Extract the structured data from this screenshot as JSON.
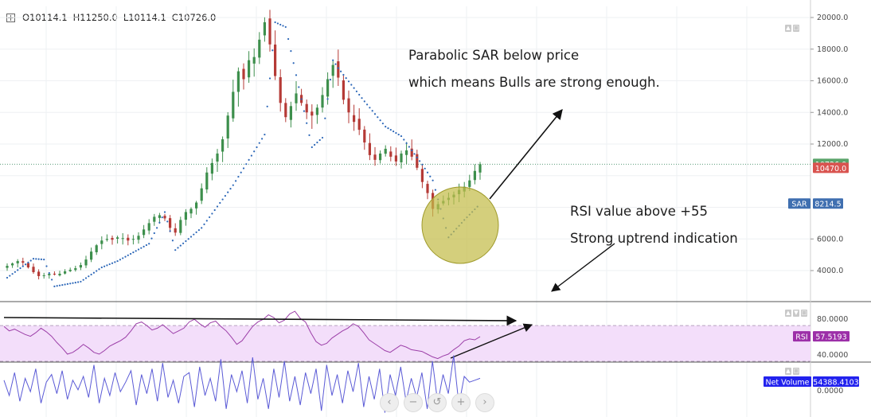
{
  "legend": {
    "open": "O10114.1",
    "high": "H11250.0",
    "low": "L10114.1",
    "close": "C10726.0"
  },
  "annotations": {
    "sar_line1": "Parabolic SAR below price",
    "sar_line2": "which means Bulls are strong enough.",
    "rsi_line1": "RSI value above +55",
    "rsi_line2": "Strong uptrend indication"
  },
  "nav_buttons": [
    {
      "icon": "chevron-left-icon",
      "glyph": "‹"
    },
    {
      "icon": "minus-icon",
      "glyph": "−"
    },
    {
      "icon": "reset-icon",
      "glyph": "↺"
    },
    {
      "icon": "plus-icon",
      "glyph": "+"
    },
    {
      "icon": "chevron-right-icon",
      "glyph": "›"
    }
  ],
  "colors": {
    "up": "#3d8f4c",
    "down": "#b53a36",
    "sar": "#2c67b8",
    "rsi_line": "#9c3fa8",
    "rsi_band": "#f3defa",
    "volume_line": "#5a5ad6",
    "close_tag": "#5aa36a",
    "price_tag": "#d9534f",
    "sar_tag": "#3f6fb0",
    "rsi_tag": "#9c2fa8",
    "netvol_tag": "#2222ee",
    "circle_fill": "#c4bd4a"
  },
  "chart_data": [
    {
      "type": "candlestick",
      "panel": "price",
      "y_ticks": [
        "20000.0",
        "18000.0",
        "16000.0",
        "14000.0",
        "12000.0",
        "6000.0",
        "4000.0"
      ],
      "y_range": [
        2000,
        20000
      ],
      "last_close": 10726.0,
      "price_line": 10726.0,
      "tags": [
        {
          "label": "10726.0",
          "value": 10726.0,
          "color_key": "close_tag"
        },
        {
          "label": "10470.0",
          "value": 10470.0,
          "color_key": "price_tag"
        },
        {
          "label": "SAR",
          "series": "sar_tag"
        },
        {
          "label": "8214.5",
          "value": 8214.5,
          "color_key": "sar_tag"
        }
      ],
      "close_path": [
        4300,
        4450,
        4600,
        4500,
        4200,
        3900,
        3650,
        3700,
        3800,
        3750,
        3800,
        3950,
        4050,
        4150,
        4350,
        4700,
        5200,
        5600,
        5900,
        6000,
        5950,
        6100,
        6050,
        5900,
        6000,
        6200,
        6600,
        7000,
        7400,
        7500,
        7300,
        6700,
        6400,
        7200,
        7700,
        7900,
        8300,
        9200,
        10200,
        10800,
        11400,
        12300,
        13800,
        15300,
        16600,
        16100,
        17300,
        17500,
        18600,
        19700,
        18300,
        16300,
        14600,
        13700,
        14400,
        15200,
        14600,
        14000,
        13800,
        14300,
        15100,
        16100,
        17000,
        16200,
        14800,
        14000,
        13400,
        12900,
        12100,
        11300,
        11000,
        11400,
        11700,
        11200,
        10900,
        11400,
        11600,
        11200,
        10500,
        9600,
        8900,
        7900,
        8200,
        8400,
        8600,
        8800,
        9100,
        9300,
        9700,
        10300,
        10726
      ],
      "sar_path": [
        [
          0,
          3550
        ],
        [
          5,
          4750
        ],
        [
          7,
          4700
        ],
        [
          9,
          3000
        ],
        [
          14,
          3300
        ],
        [
          18,
          4200
        ],
        [
          21,
          4600
        ],
        [
          27,
          5700
        ],
        [
          30,
          7700
        ],
        [
          32,
          5300
        ],
        [
          37,
          6700
        ],
        [
          43,
          9400
        ],
        [
          49,
          12600
        ],
        [
          51,
          19700
        ],
        [
          53,
          19400
        ],
        [
          58,
          11800
        ],
        [
          60,
          12400
        ],
        [
          62,
          17300
        ],
        [
          63,
          16800
        ],
        [
          68,
          14700
        ],
        [
          72,
          13100
        ],
        [
          75,
          12500
        ],
        [
          79,
          10700
        ],
        [
          81,
          9700
        ],
        [
          84,
          6100
        ],
        [
          87,
          7200
        ],
        [
          90,
          8214.5
        ]
      ]
    },
    {
      "type": "line",
      "panel": "rsi",
      "name": "RSI",
      "y_ticks": [
        "80.0000",
        "40.0000"
      ],
      "y_range": [
        30,
        95
      ],
      "band": [
        70,
        30
      ],
      "last_value": 57.5193,
      "tag_label": "RSI",
      "tag_value": "57.5193",
      "values": [
        69,
        64,
        66,
        63,
        60,
        58,
        62,
        67,
        63,
        58,
        51,
        45,
        38,
        40,
        44,
        49,
        45,
        40,
        38,
        42,
        47,
        50,
        53,
        57,
        64,
        72,
        74,
        70,
        65,
        67,
        71,
        66,
        61,
        64,
        67,
        74,
        77,
        72,
        68,
        73,
        75,
        69,
        64,
        57,
        49,
        53,
        61,
        69,
        74,
        77,
        82,
        79,
        73,
        76,
        83,
        86,
        78,
        74,
        62,
        52,
        48,
        50,
        56,
        60,
        64,
        67,
        72,
        69,
        62,
        54,
        50,
        46,
        42,
        40,
        44,
        48,
        46,
        43,
        42,
        41,
        38,
        35,
        33,
        36,
        38,
        43,
        47,
        53,
        55,
        54,
        57.5193
      ]
    },
    {
      "type": "line",
      "panel": "volume",
      "name": "Net Volume",
      "y_ticks": [
        "0.0000"
      ],
      "last_value": 54388.4103,
      "tag_label": "Net Volume",
      "tag_value": "54388.4103",
      "values": [
        0.3,
        -0.5,
        0.7,
        -0.8,
        0.4,
        -0.3,
        0.9,
        -0.9,
        0.2,
        0.6,
        -0.4,
        0.8,
        -0.7,
        0.3,
        -0.2,
        0.5,
        -0.6,
        1.1,
        -0.9,
        0.4,
        -0.5,
        0.7,
        -0.3,
        0.2,
        0.8,
        -1.0,
        0.6,
        -0.4,
        0.9,
        -0.8,
        1.2,
        -0.6,
        0.3,
        -0.9,
        0.5,
        0.7,
        -1.1,
        1.0,
        -0.5,
        0.4,
        -0.8,
        1.4,
        -1.2,
        0.6,
        -0.3,
        0.8,
        -0.9,
        1.5,
        -0.7,
        0.4,
        -1.2,
        0.9,
        -0.6,
        1.3,
        -0.8,
        0.5,
        -1.0,
        0.7,
        -0.4,
        0.9,
        -1.3,
        1.1,
        -0.5,
        0.6,
        -0.9,
        0.8,
        -0.3,
        1.2,
        -1.1,
        0.5,
        -0.7,
        0.9,
        -1.4,
        0.6,
        -0.5,
        1.0,
        -0.8,
        0.4,
        -0.6,
        0.7,
        -1.2,
        1.3,
        -0.9,
        0.6,
        -0.4,
        1.6,
        -1.0,
        0.5,
        0.2,
        0.3,
        0.4
      ]
    }
  ]
}
